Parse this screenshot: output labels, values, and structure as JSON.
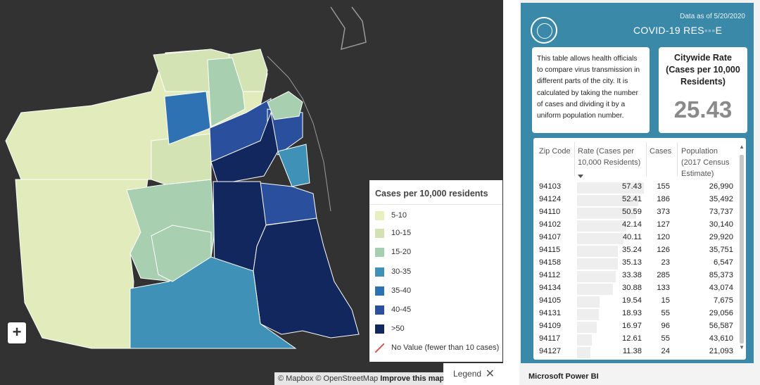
{
  "map": {
    "zoom_in_label": "+",
    "attribution": {
      "mapbox": "© Mapbox",
      "osm": "© OpenStreetMap",
      "improve": "Improve this map"
    },
    "legend": {
      "title": "Cases per 10,000 residents",
      "items": [
        {
          "label": "5-10",
          "color": "#e8f0bf"
        },
        {
          "label": "10-15",
          "color": "#d2e2b2"
        },
        {
          "label": "15-20",
          "color": "#a5cfb1"
        },
        {
          "label": "30-35",
          "color": "#3f91b8"
        },
        {
          "label": "35-40",
          "color": "#2d71b2"
        },
        {
          "label": "40-45",
          "color": "#2a4f9c"
        },
        {
          "label": ">50",
          "color": "#13275f"
        },
        {
          "label": "No Value (fewer than 10 cases)",
          "color": "#d9534f"
        }
      ],
      "toggle_label": "Legend",
      "close_glyph": "✕"
    }
  },
  "dashboard": {
    "data_date": "Data as of 5/20/2020",
    "title": "COVID-19 RES",
    "title_obscured": "▪▪▪",
    "title_end": "E",
    "info_text": "This table allows health officials to compare virus transmission in different parts of the city. It is calculated by taking the number of cases and dividing it by a uniform population number.",
    "citywide_label": "Citywide Rate (Cases per 10,000 Residents)",
    "citywide_value": "25.43",
    "table": {
      "headers": {
        "zip": "Zip Code",
        "rate_1": "Rate (Cases per",
        "rate_2": "10,000 Residents)",
        "cases": "Cases",
        "pop_1": "Population",
        "pop_2": "(2017 Census",
        "pop_3": "Estimate)"
      },
      "rows": [
        {
          "zip": "94103",
          "rate": 57.43,
          "rate_text": "57.43",
          "cases": "155",
          "population": "26,990"
        },
        {
          "zip": "94124",
          "rate": 52.41,
          "rate_text": "52.41",
          "cases": "186",
          "population": "35,492"
        },
        {
          "zip": "94110",
          "rate": 50.59,
          "rate_text": "50.59",
          "cases": "373",
          "population": "73,737"
        },
        {
          "zip": "94102",
          "rate": 42.14,
          "rate_text": "42.14",
          "cases": "127",
          "population": "30,140"
        },
        {
          "zip": "94107",
          "rate": 40.11,
          "rate_text": "40.11",
          "cases": "120",
          "population": "29,920"
        },
        {
          "zip": "94115",
          "rate": 35.24,
          "rate_text": "35.24",
          "cases": "126",
          "population": "35,751"
        },
        {
          "zip": "94158",
          "rate": 35.13,
          "rate_text": "35.13",
          "cases": "23",
          "population": "6,547"
        },
        {
          "zip": "94112",
          "rate": 33.38,
          "rate_text": "33.38",
          "cases": "285",
          "population": "85,373"
        },
        {
          "zip": "94134",
          "rate": 30.88,
          "rate_text": "30.88",
          "cases": "133",
          "population": "43,074"
        },
        {
          "zip": "94105",
          "rate": 19.54,
          "rate_text": "19.54",
          "cases": "15",
          "population": "7,675"
        },
        {
          "zip": "94131",
          "rate": 18.93,
          "rate_text": "18.93",
          "cases": "55",
          "population": "29,056"
        },
        {
          "zip": "94109",
          "rate": 16.97,
          "rate_text": "16.97",
          "cases": "96",
          "population": "56,587"
        },
        {
          "zip": "94117",
          "rate": 12.61,
          "rate_text": "12.61",
          "cases": "55",
          "population": "43,610"
        },
        {
          "zip": "94127",
          "rate": 11.38,
          "rate_text": "11.38",
          "cases": "24",
          "population": "21,093"
        }
      ],
      "max_rate": 57.43
    },
    "footer": "Microsoft Power BI"
  }
}
